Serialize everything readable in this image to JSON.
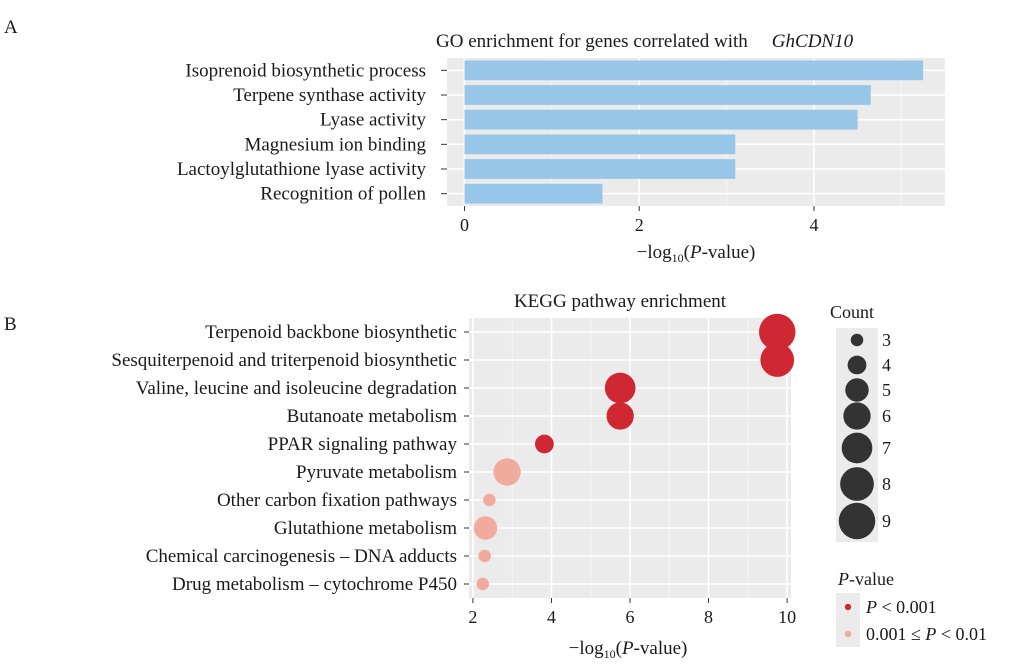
{
  "figure": {
    "panel_a": "A",
    "panel_b": "B"
  },
  "chart_data": [
    {
      "type": "bar",
      "orientation": "horizontal",
      "title": "GO enrichment for genes correlated with",
      "title_italic": "GhCDN10",
      "xlabel_prefix": "−log",
      "xlabel_sub": "10",
      "xlabel_open": "(",
      "xlabel_italic": "P",
      "xlabel_suffix": "-value)",
      "categories": [
        "Isoprenoid biosynthetic process",
        "Terpene synthase activity",
        "Lyase activity",
        "Magnesium ion binding",
        "Lactoylglutathione lyase activity",
        "Recognition of pollen"
      ],
      "values": [
        5.25,
        4.65,
        4.5,
        3.1,
        3.1,
        1.58
      ],
      "xlim": [
        -0.2,
        5.5
      ],
      "xticks": [
        0,
        2,
        4
      ],
      "bar_color": "#98c6e8",
      "grid": true,
      "panel_bg": "#ebebeb"
    },
    {
      "type": "scatter",
      "title": "KEGG pathway enrichment",
      "xlabel_prefix": "−log",
      "xlabel_sub": "10",
      "xlabel_open": "(",
      "xlabel_italic": "P",
      "xlabel_suffix": "-value)",
      "categories": [
        "Terpenoid backbone biosynthetic",
        "Sesquiterpenoid and triterpenoid biosynthetic",
        "Valine, leucine and isoleucine degradation",
        "Butanoate metabolism",
        "PPAR signaling pathway",
        "Pyruvate metabolism",
        "Other carbon fixation pathways",
        "Glutathione metabolism",
        "Chemical carcinogenesis – DNA adducts",
        "Drug metabolism – cytochrome P450"
      ],
      "x": [
        9.75,
        9.75,
        5.75,
        5.75,
        3.82,
        2.87,
        2.42,
        2.32,
        2.3,
        2.25
      ],
      "count": [
        9,
        8,
        7,
        6,
        4,
        6,
        3,
        5,
        3,
        3
      ],
      "significance": [
        "high",
        "high",
        "high",
        "high",
        "high",
        "low",
        "low",
        "low",
        "low",
        "low"
      ],
      "xlim": [
        1.9,
        10.1
      ],
      "xticks": [
        2,
        4,
        6,
        8,
        10
      ],
      "colors": {
        "high": "#d02832",
        "low": "#f0aa9e"
      },
      "grid": true,
      "panel_bg": "#ebebeb",
      "legend_size": {
        "title": "Count",
        "levels": [
          "3",
          "4",
          "5",
          "6",
          "7",
          "8",
          "9"
        ],
        "placement": "right"
      },
      "legend_color": {
        "title_italic": "P",
        "title_suffix": "-value",
        "items": [
          {
            "key": "high",
            "pre": "",
            "italic": "P",
            "post": " < 0.001"
          },
          {
            "key": "low",
            "pre": "0.001 ≤ ",
            "italic": "P",
            "post": " < 0.01"
          }
        ],
        "placement": "right"
      }
    }
  ]
}
